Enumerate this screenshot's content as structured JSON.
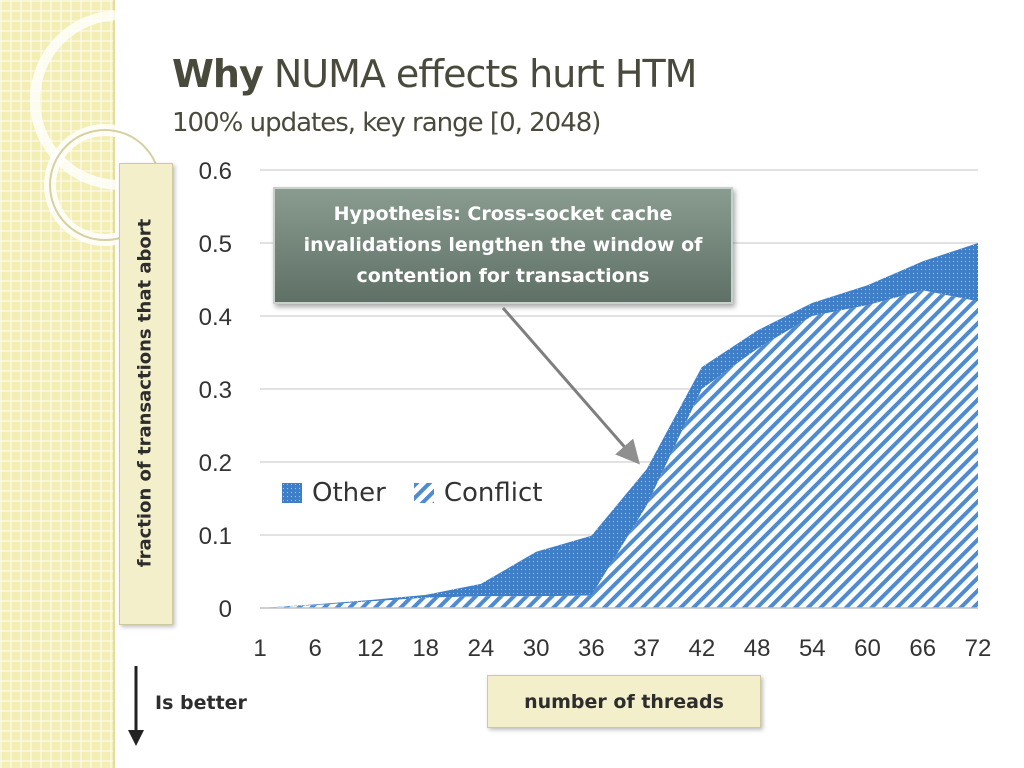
{
  "slide": {
    "title_bold": "Why",
    "title_rest": " NUMA effects hurt HTM",
    "subtitle": "100% updates, key range [0, 2048)",
    "is_better": "Is better",
    "hypothesis": "Hypothesis: Cross-socket cache invalidations lengthen the window of contention for transactions"
  },
  "colors": {
    "other": "#3f7fc8",
    "conflict": "#4e8bd0",
    "grid": "#d9d9d9",
    "callout": "#6e8075"
  },
  "chart_data": {
    "type": "area",
    "title": "",
    "xlabel": "number of threads",
    "ylabel": "fraction of transactions that abort",
    "categories": [
      "1",
      "6",
      "12",
      "18",
      "24",
      "30",
      "36",
      "37",
      "42",
      "48",
      "54",
      "60",
      "66",
      "72"
    ],
    "ylim": [
      0,
      0.6
    ],
    "yticks": [
      "0",
      "0.1",
      "0.2",
      "0.3",
      "0.4",
      "0.5",
      "0.6"
    ],
    "grid": true,
    "legend_position": "inside-left",
    "series": [
      {
        "name": "Conflict",
        "pattern": "hatched",
        "values": [
          0,
          0.004,
          0.009,
          0.014,
          0.016,
          0.016,
          0.017,
          0.14,
          0.3,
          0.355,
          0.4,
          0.415,
          0.435,
          0.42
        ]
      },
      {
        "name": "Other",
        "pattern": "dotted",
        "values": [
          0,
          0.001,
          0.002,
          0.004,
          0.017,
          0.061,
          0.082,
          0.05,
          0.03,
          0.025,
          0.018,
          0.027,
          0.04,
          0.08
        ]
      }
    ]
  }
}
